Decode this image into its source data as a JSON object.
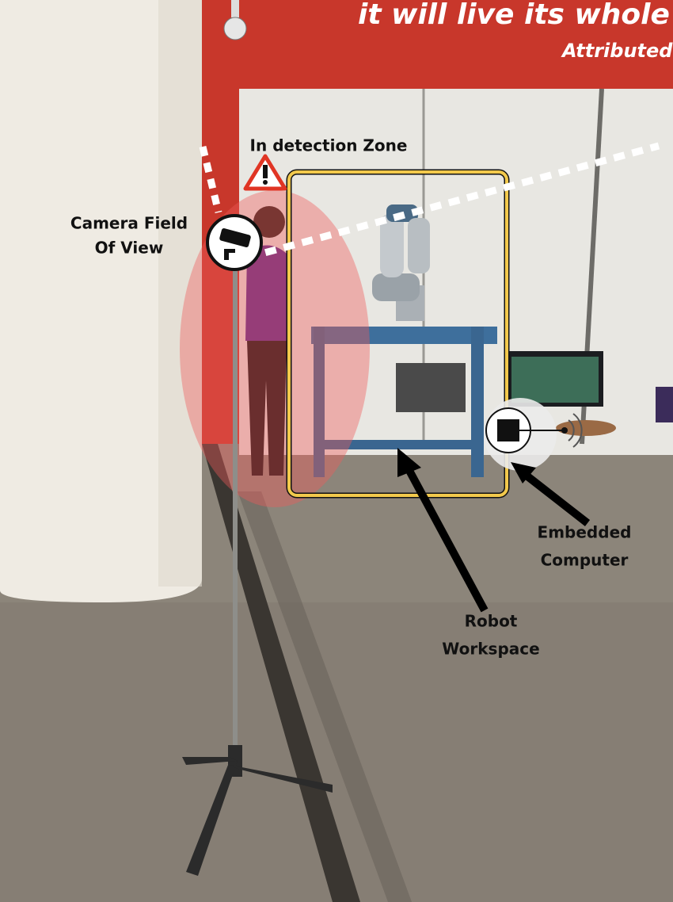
{
  "wall_sign": {
    "line1": "it will live its whole lif",
    "line2": "Attributed"
  },
  "annotations": {
    "detection_zone": "In detection Zone",
    "camera_fov": [
      "Camera Field",
      "Of View"
    ],
    "embedded_computer": [
      "Embedded",
      "Computer"
    ],
    "robot_workspace": [
      "Robot",
      "Workspace"
    ]
  }
}
